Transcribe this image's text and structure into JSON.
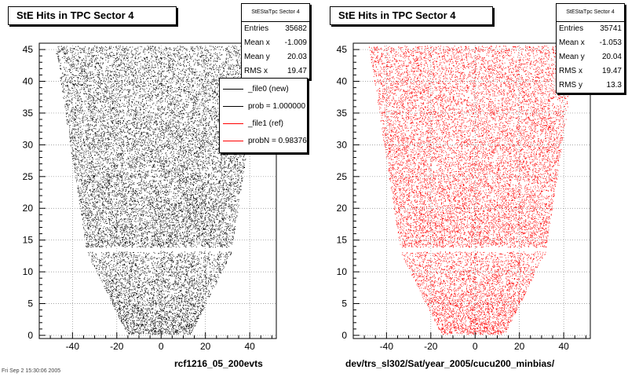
{
  "panels": [
    {
      "title": "StE Hits in TPC Sector 4",
      "xlabel": "rcf1216_05_200evts",
      "stats": {
        "header": "StEStaTpc Sector 4",
        "rows": [
          {
            "label": "Entries",
            "value": "35682"
          },
          {
            "label": "Mean x",
            "value": "-1.009"
          },
          {
            "label": "Mean y",
            "value": "20.03"
          },
          {
            "label": "RMS x",
            "value": "19.47"
          }
        ]
      },
      "legend": [
        {
          "label": "_file0 (new)",
          "color": "#000000"
        },
        {
          "label": "prob = 1.000000",
          "color": "#000000"
        },
        {
          "label": "_file1 (ref)",
          "color": "#ff0000"
        },
        {
          "label": "probN = 0.983768",
          "color": "#ff0000"
        }
      ]
    },
    {
      "title": "StE Hits in TPC Sector 4",
      "xlabel": "dev/trs_sl302/Sat/year_2005/cucu200_minbias/",
      "stats": {
        "header": "StEStaTpc Sector 4",
        "rows": [
          {
            "label": "Entries",
            "value": "35741"
          },
          {
            "label": "Mean x",
            "value": "-1.053"
          },
          {
            "label": "Mean y",
            "value": "20.04"
          },
          {
            "label": "RMS x",
            "value": "19.47"
          },
          {
            "label": "RMS y",
            "value": "13.3"
          }
        ]
      }
    }
  ],
  "footer": "Fri Sep 2 15:30:06 2005",
  "chart_data": [
    {
      "type": "scatter",
      "title": "StE Hits in TPC Sector 4",
      "xlabel": "rcf1216_05_200evts",
      "ylabel": "",
      "xlim": [
        -55,
        52
      ],
      "ylim": [
        -0.5,
        46
      ],
      "xticks": [
        -40,
        -20,
        0,
        20,
        40
      ],
      "yticks": [
        0,
        5,
        10,
        15,
        20,
        25,
        30,
        35,
        40,
        45
      ],
      "grid": true,
      "color": "#000000",
      "entries": 35682,
      "mean_x": -1.009,
      "mean_y": 20.03,
      "rms_x": 19.47,
      "shape": {
        "outer_bottom_y": 13.2,
        "gap_y": [
          13.2,
          13.9
        ],
        "top_halfwidth": 47,
        "mid_halfwidth": 33,
        "bottom_halfwidth": 14
      }
    },
    {
      "type": "scatter",
      "title": "StE Hits in TPC Sector 4",
      "xlabel": "dev/trs_sl302/Sat/year_2005/cucu200_minbias/",
      "ylabel": "",
      "xlim": [
        -55,
        52
      ],
      "ylim": [
        -0.5,
        46
      ],
      "xticks": [
        -40,
        -20,
        0,
        20,
        40
      ],
      "yticks": [
        0,
        5,
        10,
        15,
        20,
        25,
        30,
        35,
        40,
        45
      ],
      "grid": true,
      "color": "#ff0000",
      "entries": 35741,
      "mean_x": -1.053,
      "mean_y": 20.04,
      "rms_x": 19.47,
      "rms_y": 13.3,
      "shape": {
        "outer_bottom_y": 13.2,
        "gap_y": [
          13.2,
          13.9
        ],
        "top_halfwidth": 47,
        "mid_halfwidth": 33,
        "bottom_halfwidth": 14
      }
    }
  ]
}
